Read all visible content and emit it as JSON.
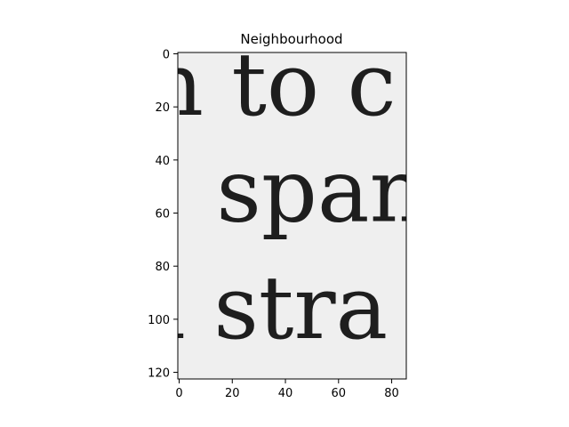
{
  "chart_data": {
    "type": "image",
    "title": "Neighbourhood",
    "xlabel": "",
    "ylabel": "",
    "xlim": [
      -0.5,
      85.5
    ],
    "ylim": [
      122.5,
      -0.5
    ],
    "y_inverted": true,
    "grid": false,
    "x_ticks": [
      0,
      20,
      40,
      60,
      80
    ],
    "y_ticks": [
      0,
      20,
      40,
      60,
      80,
      100,
      120
    ],
    "colormap": "gray",
    "background_color": "#efefef",
    "ink_color": "#1e1e1e",
    "text_lines": [
      {
        "text": "n to c",
        "x_start": -12,
        "baseline": 23
      },
      {
        "text": "span",
        "x_start": 14,
        "baseline": 63
      },
      {
        "text": "l stra",
        "x_start": -8,
        "baseline": 107
      }
    ],
    "font_size_units": 33
  }
}
